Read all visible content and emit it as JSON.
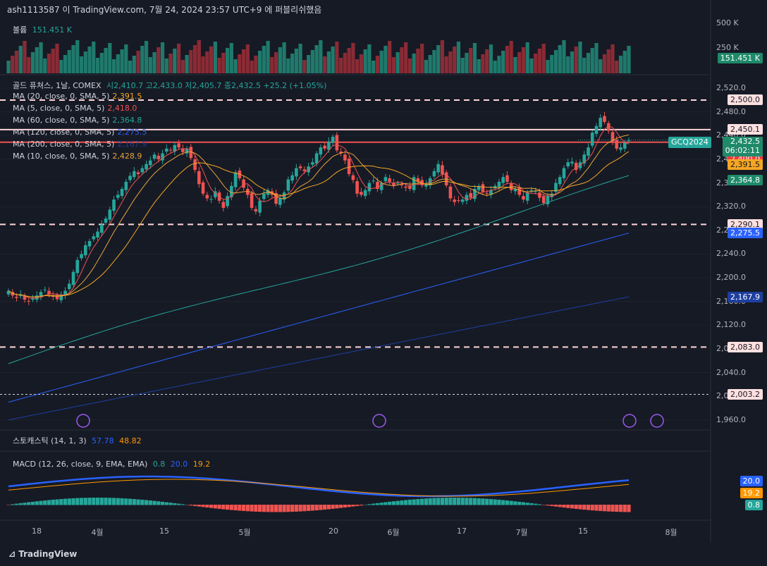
{
  "header": "ash1113587 이 TradingView.com, 7월 24, 2024 23:57 UTC+9 에 퍼블리쉬했음",
  "brand": "TradingView",
  "volume": {
    "label": "볼륨",
    "value": "151.451 K",
    "axis": [
      "500 K",
      "250 K"
    ],
    "tag": "151.451 K"
  },
  "main_legend": {
    "symbol": "골드 퓨쳐스, 1날, COMEX",
    "ohlc": "시2,410.7 고2,433.0 저2,405.7 종2,432.5 +25.2 (+1.05%)",
    "mas": [
      {
        "name": "MA (20, close, 0, SMA, 5)",
        "value": "2,391.5",
        "color": "#f5a623"
      },
      {
        "name": "MA (5, close, 0, SMA, 5)",
        "value": "2,418.0",
        "color": "#ef5350"
      },
      {
        "name": "MA (60, close, 0, SMA, 5)",
        "value": "2,364.8",
        "color": "#26a69a"
      },
      {
        "name": "MA (120, close, 0, SMA, 5)",
        "value": "2,275.5",
        "color": "#2962ff"
      },
      {
        "name": "MA (200, close, 0, SMA, 5)",
        "value": "2,167.9",
        "color": "#1e3fa0"
      },
      {
        "name": "MA (10, close, 0, SMA, 5)",
        "value": "2,428.9",
        "color": "#e8a33c"
      }
    ]
  },
  "stoch_legend": {
    "name": "스토캐스틱 (14, 1, 3)",
    "k": "57.78",
    "d": "48.82"
  },
  "macd_legend": {
    "name": "MACD (12, 26, close, 9, EMA, EMA)",
    "hist": "0.8",
    "macd": "20.0",
    "signal": "19.2"
  },
  "symbol_tag": {
    "name": "GCQ2024",
    "price": "2,432.5",
    "countdown": "06:02:11"
  },
  "chart_data": {
    "type": "candlestick",
    "price_axis": [
      "2,520.0",
      "2,480.0",
      "2,440.0",
      "2,400.0",
      "2,360.0",
      "2,320.0",
      "2,280.0",
      "2,240.0",
      "2,200.0",
      "2,160.0",
      "2,120.0",
      "2,080.0",
      "2,040.0",
      "2,000.0",
      "1,960.0"
    ],
    "x_ticks": [
      "18",
      "4월",
      "15",
      "5월",
      "20",
      "6월",
      "17",
      "7월",
      "15",
      "8월"
    ],
    "y_range": [
      1955,
      2538
    ],
    "horizontal_lines": [
      2500.0,
      2450.1,
      2428.9,
      2290.1,
      2083.0,
      2003.2
    ],
    "price_labels": [
      {
        "text": "2,500.0",
        "value": 2500.0,
        "bg": "#ffe0e0",
        "fg": "#131722"
      },
      {
        "text": "2,450.1",
        "value": 2450.1,
        "bg": "#ffe0e0",
        "fg": "#131722"
      },
      {
        "text": "2,428.9",
        "value": 2428.9,
        "bg": "#ef5350",
        "fg": "#ffffff"
      },
      {
        "text": "2,418.0",
        "value": 2418.0,
        "bg": "#c8303a",
        "fg": "#ffffff"
      },
      {
        "text": "2,400.0",
        "value": 2400.0,
        "bg": "#ef3b3b",
        "fg": "#ffffff"
      },
      {
        "text": "2,391.5",
        "value": 2391.5,
        "bg": "#f5a623",
        "fg": "#131722"
      },
      {
        "text": "2,364.8",
        "value": 2364.8,
        "bg": "#1f8a6a",
        "fg": "#ffffff"
      },
      {
        "text": "2,290.1",
        "value": 2290.1,
        "bg": "#ffe0e0",
        "fg": "#131722"
      },
      {
        "text": "2,275.5",
        "value": 2275.5,
        "bg": "#2962ff",
        "fg": "#ffffff"
      },
      {
        "text": "2,167.9",
        "value": 2167.9,
        "bg": "#1e3fa0",
        "fg": "#ffffff"
      },
      {
        "text": "2,083.0",
        "value": 2083.0,
        "bg": "#ffe0e0",
        "fg": "#131722"
      },
      {
        "text": "2,003.2",
        "value": 2003.2,
        "bg": "#ffe0e0",
        "fg": "#131722"
      }
    ],
    "closes": [
      2178,
      2170,
      2166,
      2172,
      2163,
      2160,
      2165,
      2170,
      2176,
      2180,
      2172,
      2168,
      2164,
      2172,
      2178,
      2190,
      2210,
      2230,
      2240,
      2255,
      2262,
      2270,
      2278,
      2290,
      2300,
      2315,
      2332,
      2340,
      2350,
      2362,
      2372,
      2380,
      2375,
      2385,
      2392,
      2398,
      2408,
      2400,
      2410,
      2418,
      2415,
      2424,
      2420,
      2412,
      2418,
      2402,
      2382,
      2358,
      2342,
      2334,
      2333,
      2346,
      2330,
      2318,
      2338,
      2355,
      2378,
      2368,
      2352,
      2340,
      2318,
      2312,
      2330,
      2342,
      2348,
      2340,
      2325,
      2334,
      2344,
      2366,
      2373,
      2385,
      2385,
      2380,
      2388,
      2395,
      2410,
      2420,
      2418,
      2430,
      2438,
      2415,
      2410,
      2398,
      2375,
      2365,
      2342,
      2340,
      2348,
      2360,
      2364,
      2350,
      2360,
      2370,
      2362,
      2356,
      2360,
      2356,
      2352,
      2350,
      2370,
      2362,
      2356,
      2358,
      2368,
      2380,
      2392,
      2375,
      2356,
      2334,
      2328,
      2330,
      2332,
      2340,
      2335,
      2350,
      2355,
      2345,
      2342,
      2348,
      2355,
      2362,
      2370,
      2362,
      2348,
      2350,
      2340,
      2332,
      2344,
      2348,
      2346,
      2335,
      2326,
      2338,
      2342,
      2360,
      2370,
      2385,
      2395,
      2396,
      2382,
      2395,
      2408,
      2420,
      2445,
      2456,
      2470,
      2463,
      2448,
      2430,
      2418,
      2420,
      2428,
      2432
    ]
  }
}
